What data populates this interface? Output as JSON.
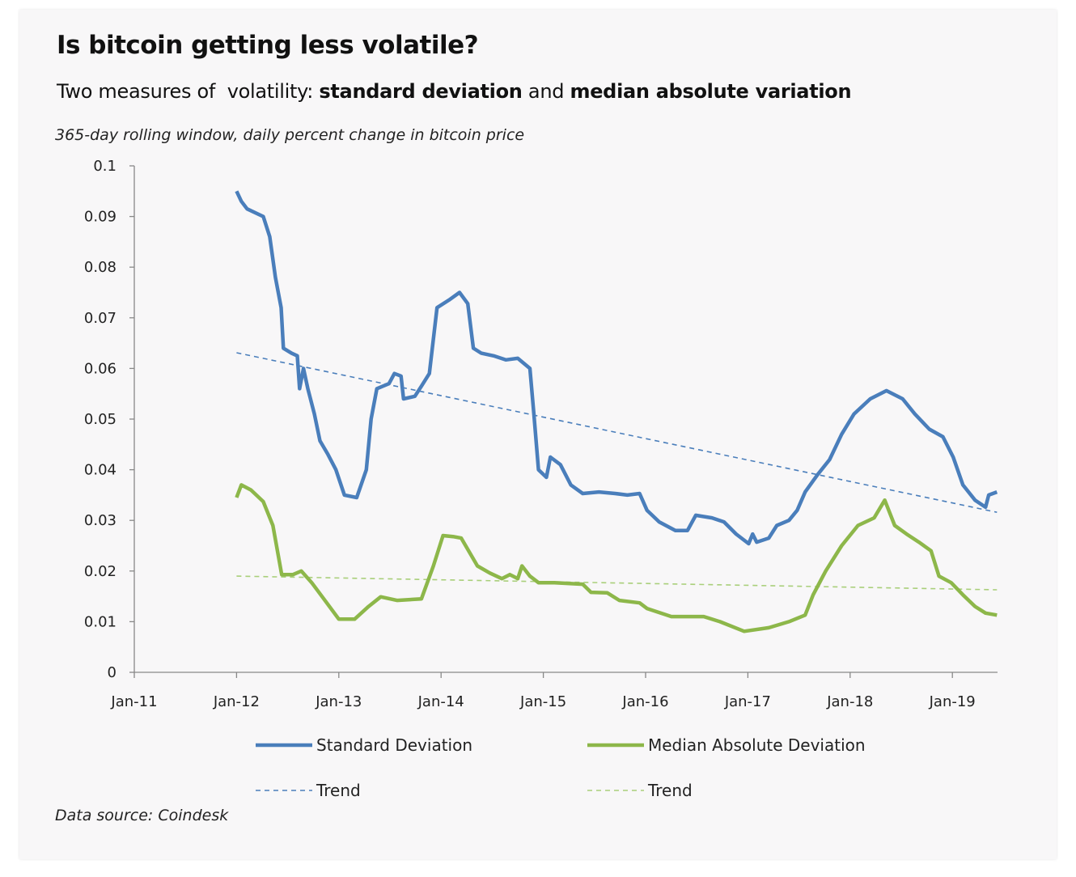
{
  "chart_data": {
    "type": "line",
    "title": "Is bitcoin getting less volatile?",
    "subtitle": {
      "prefix": "Two measures of  volatility: ",
      "bold1": "standard deviation",
      "mid": " and ",
      "bold2": "median absolute variation"
    },
    "note": "365-day rolling window, daily percent change in bitcoin price",
    "source": "Data source: Coindesk",
    "xlabel": "",
    "ylabel": "",
    "xlim": [
      "2011-01-01",
      "2019-06-10"
    ],
    "ylim": [
      0,
      0.1
    ],
    "x_ticks": [
      "Jan-11",
      "Jan-12",
      "Jan-13",
      "Jan-14",
      "Jan-15",
      "Jan-16",
      "Jan-17",
      "Jan-18",
      "Jan-19"
    ],
    "x_tick_dates": [
      "2011-01-01",
      "2012-01-01",
      "2013-01-01",
      "2014-01-01",
      "2015-01-01",
      "2016-01-01",
      "2017-01-01",
      "2018-01-01",
      "2019-01-01"
    ],
    "y_ticks": [
      "0",
      "0.01",
      "0.02",
      "0.03",
      "0.04",
      "0.05",
      "0.06",
      "0.07",
      "0.08",
      "0.09",
      "0.1"
    ],
    "grid": false,
    "legend_position": "bottom",
    "series": [
      {
        "name": "Standard Deviation",
        "color": "#4a7ebb",
        "style": "solid",
        "points": [
          [
            "2012-01-01",
            0.095
          ],
          [
            "2012-01-18",
            0.093
          ],
          [
            "2012-02-08",
            0.0915
          ],
          [
            "2012-04-05",
            0.09
          ],
          [
            "2012-04-28",
            0.086
          ],
          [
            "2012-05-18",
            0.078
          ],
          [
            "2012-06-08",
            0.072
          ],
          [
            "2012-06-16",
            0.064
          ],
          [
            "2012-07-15",
            0.063
          ],
          [
            "2012-08-05",
            0.0625
          ],
          [
            "2012-08-13",
            0.056
          ],
          [
            "2012-08-27",
            0.06
          ],
          [
            "2012-09-12",
            0.056
          ],
          [
            "2012-10-05",
            0.051
          ],
          [
            "2012-10-25",
            0.0457
          ],
          [
            "2012-11-23",
            0.043
          ],
          [
            "2012-12-21",
            0.04
          ],
          [
            "2013-01-21",
            0.035
          ],
          [
            "2013-03-04",
            0.0345
          ],
          [
            "2013-04-08",
            0.04
          ],
          [
            "2013-04-25",
            0.05
          ],
          [
            "2013-05-15",
            0.056
          ],
          [
            "2013-06-28",
            0.057
          ],
          [
            "2013-07-17",
            0.059
          ],
          [
            "2013-08-10",
            0.0585
          ],
          [
            "2013-08-19",
            0.054
          ],
          [
            "2013-09-29",
            0.0545
          ],
          [
            "2013-10-22",
            0.0565
          ],
          [
            "2013-11-20",
            0.059
          ],
          [
            "2013-12-17",
            0.072
          ],
          [
            "2014-01-29",
            0.0735
          ],
          [
            "2014-03-06",
            0.075
          ],
          [
            "2014-04-05",
            0.0728
          ],
          [
            "2014-04-25",
            0.064
          ],
          [
            "2014-05-23",
            0.063
          ],
          [
            "2014-07-06",
            0.0625
          ],
          [
            "2014-08-19",
            0.0617
          ],
          [
            "2014-10-01",
            0.062
          ],
          [
            "2014-11-14",
            0.06
          ],
          [
            "2014-11-28",
            0.051
          ],
          [
            "2014-12-14",
            0.04
          ],
          [
            "2015-01-12",
            0.0385
          ],
          [
            "2015-01-26",
            0.0425
          ],
          [
            "2015-03-01",
            0.041
          ],
          [
            "2015-04-08",
            0.037
          ],
          [
            "2015-05-20",
            0.0353
          ],
          [
            "2015-07-17",
            0.0356
          ],
          [
            "2015-09-14",
            0.0353
          ],
          [
            "2015-10-27",
            0.035
          ],
          [
            "2015-12-10",
            0.0353
          ],
          [
            "2016-01-06",
            0.032
          ],
          [
            "2016-02-19",
            0.0297
          ],
          [
            "2016-04-16",
            0.028
          ],
          [
            "2016-05-29",
            0.028
          ],
          [
            "2016-06-28",
            0.031
          ],
          [
            "2016-08-25",
            0.0305
          ],
          [
            "2016-10-07",
            0.0297
          ],
          [
            "2016-11-20",
            0.0273
          ],
          [
            "2017-01-04",
            0.0254
          ],
          [
            "2017-01-18",
            0.0273
          ],
          [
            "2017-02-02",
            0.0257
          ],
          [
            "2017-03-15",
            0.0265
          ],
          [
            "2017-04-13",
            0.029
          ],
          [
            "2017-05-26",
            0.03
          ],
          [
            "2017-06-25",
            0.032
          ],
          [
            "2017-07-23",
            0.0356
          ],
          [
            "2017-09-06",
            0.039
          ],
          [
            "2017-10-19",
            0.042
          ],
          [
            "2017-12-01",
            0.047
          ],
          [
            "2018-01-15",
            0.051
          ],
          [
            "2018-03-12",
            0.054
          ],
          [
            "2018-05-09",
            0.0556
          ],
          [
            "2018-07-06",
            0.054
          ],
          [
            "2018-08-19",
            0.051
          ],
          [
            "2018-10-10",
            0.048
          ],
          [
            "2018-11-28",
            0.0465
          ],
          [
            "2019-01-04",
            0.0425
          ],
          [
            "2019-02-08",
            0.037
          ],
          [
            "2019-03-21",
            0.034
          ],
          [
            "2019-04-28",
            0.0326
          ],
          [
            "2019-05-09",
            0.035
          ],
          [
            "2019-06-08",
            0.0356
          ]
        ]
      },
      {
        "name": "Median Absolute Deviation",
        "color": "#8db74a",
        "style": "solid",
        "points": [
          [
            "2012-01-01",
            0.0345
          ],
          [
            "2012-01-18",
            0.037
          ],
          [
            "2012-02-22",
            0.036
          ],
          [
            "2012-04-05",
            0.0337
          ],
          [
            "2012-05-09",
            0.029
          ],
          [
            "2012-06-10",
            0.0193
          ],
          [
            "2012-07-20",
            0.0193
          ],
          [
            "2012-08-19",
            0.02
          ],
          [
            "2012-09-26",
            0.0177
          ],
          [
            "2012-11-08",
            0.0145
          ],
          [
            "2013-01-01",
            0.0105
          ],
          [
            "2013-02-27",
            0.0105
          ],
          [
            "2013-04-16",
            0.013
          ],
          [
            "2013-05-29",
            0.0149
          ],
          [
            "2013-07-26",
            0.0142
          ],
          [
            "2013-10-22",
            0.0145
          ],
          [
            "2013-12-04",
            0.021
          ],
          [
            "2014-01-08",
            0.027
          ],
          [
            "2014-02-13",
            0.0268
          ],
          [
            "2014-03-12",
            0.0265
          ],
          [
            "2014-05-09",
            0.021
          ],
          [
            "2014-06-23",
            0.0196
          ],
          [
            "2014-08-05",
            0.0185
          ],
          [
            "2014-09-03",
            0.0193
          ],
          [
            "2014-10-01",
            0.0185
          ],
          [
            "2014-10-16",
            0.021
          ],
          [
            "2014-11-14",
            0.019
          ],
          [
            "2014-12-14",
            0.0177
          ],
          [
            "2015-02-10",
            0.0177
          ],
          [
            "2015-05-20",
            0.0174
          ],
          [
            "2015-06-19",
            0.0158
          ],
          [
            "2015-08-16",
            0.0157
          ],
          [
            "2015-09-29",
            0.0142
          ],
          [
            "2015-12-10",
            0.0137
          ],
          [
            "2016-01-06",
            0.0126
          ],
          [
            "2016-04-02",
            0.011
          ],
          [
            "2016-07-26",
            0.011
          ],
          [
            "2016-09-23",
            0.01
          ],
          [
            "2016-12-18",
            0.0081
          ],
          [
            "2017-03-15",
            0.0088
          ],
          [
            "2017-05-26",
            0.01
          ],
          [
            "2017-07-23",
            0.0113
          ],
          [
            "2017-08-21",
            0.0153
          ],
          [
            "2017-10-05",
            0.02
          ],
          [
            "2017-12-01",
            0.025
          ],
          [
            "2018-01-29",
            0.029
          ],
          [
            "2018-03-26",
            0.0305
          ],
          [
            "2018-05-03",
            0.034
          ],
          [
            "2018-06-08",
            0.029
          ],
          [
            "2018-07-20",
            0.0273
          ],
          [
            "2018-09-03",
            0.0257
          ],
          [
            "2018-10-16",
            0.024
          ],
          [
            "2018-11-14",
            0.019
          ],
          [
            "2018-12-27",
            0.0177
          ],
          [
            "2019-02-08",
            0.0153
          ],
          [
            "2019-03-21",
            0.013
          ],
          [
            "2019-04-28",
            0.0117
          ],
          [
            "2019-06-08",
            0.0113
          ]
        ]
      },
      {
        "name": "Trend",
        "color": "#4a7ebb",
        "style": "dashed",
        "points": [
          [
            "2012-01-01",
            0.0631
          ],
          [
            "2019-06-08",
            0.0316
          ]
        ]
      },
      {
        "name": "Trend",
        "color": "#a9cf7a",
        "style": "dashed",
        "points": [
          [
            "2012-01-01",
            0.019
          ],
          [
            "2019-06-08",
            0.0163
          ]
        ]
      }
    ]
  }
}
